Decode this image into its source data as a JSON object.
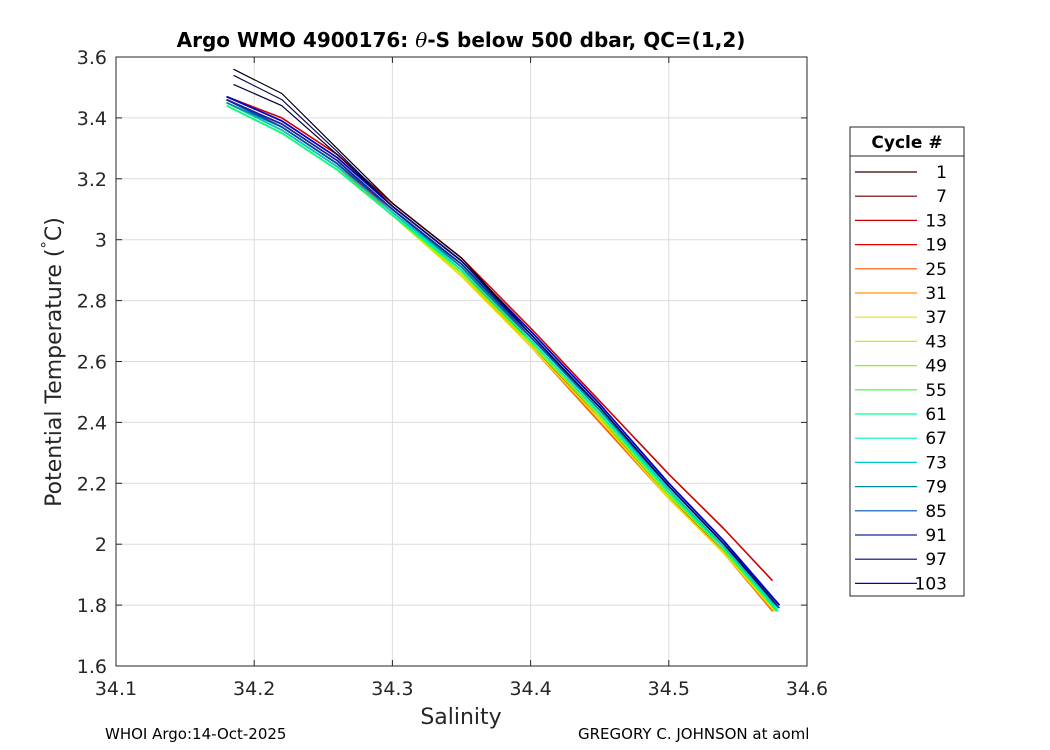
{
  "chart_data": {
    "type": "line",
    "title_prefix": "Argo WMO 4900176: ",
    "title_theta": "θ",
    "title_suffix": "-S below 500 dbar,  QC=(1,2)",
    "xlabel": "Salinity",
    "ylabel_prefix": "Potential Temperature (",
    "ylabel_degree": "°",
    "ylabel_suffix": "C)",
    "xlim": [
      34.1,
      34.6
    ],
    "ylim": [
      1.6,
      3.6
    ],
    "xticks": [
      "34.1",
      "34.2",
      "34.3",
      "34.4",
      "34.5",
      "34.6"
    ],
    "yticks": [
      "1.6",
      "1.8",
      "2",
      "2.2",
      "2.4",
      "2.6",
      "2.8",
      "3",
      "3.2",
      "3.4",
      "3.6"
    ],
    "grid": true,
    "legend_title": "Cycle #",
    "legend_position": "right",
    "series": [
      {
        "name": "1",
        "color": "#330000",
        "points": [
          [
            34.18,
            3.46
          ],
          [
            34.22,
            3.37
          ],
          [
            34.26,
            3.25
          ],
          [
            34.3,
            3.09
          ],
          [
            34.35,
            2.9
          ],
          [
            34.4,
            2.66
          ],
          [
            34.45,
            2.42
          ],
          [
            34.5,
            2.16
          ],
          [
            34.54,
            1.98
          ],
          [
            34.575,
            1.79
          ]
        ]
      },
      {
        "name": "7",
        "color": "#660000",
        "points": [
          [
            34.18,
            3.46
          ],
          [
            34.22,
            3.38
          ],
          [
            34.26,
            3.26
          ],
          [
            34.3,
            3.1
          ],
          [
            34.35,
            2.91
          ],
          [
            34.4,
            2.67
          ],
          [
            34.45,
            2.43
          ],
          [
            34.5,
            2.17
          ],
          [
            34.54,
            1.99
          ],
          [
            34.576,
            1.8
          ]
        ]
      },
      {
        "name": "13",
        "color": "#cc0000",
        "points": [
          [
            34.18,
            3.47
          ],
          [
            34.22,
            3.4
          ],
          [
            34.26,
            3.28
          ],
          [
            34.3,
            3.12
          ],
          [
            34.35,
            2.94
          ],
          [
            34.4,
            2.71
          ],
          [
            34.45,
            2.47
          ],
          [
            34.5,
            2.23
          ],
          [
            34.54,
            2.05
          ],
          [
            34.575,
            1.88
          ]
        ]
      },
      {
        "name": "19",
        "color": "#e60000",
        "points": [
          [
            34.18,
            3.46
          ],
          [
            34.22,
            3.37
          ],
          [
            34.26,
            3.25
          ],
          [
            34.3,
            3.09
          ],
          [
            34.35,
            2.9
          ],
          [
            34.4,
            2.66
          ],
          [
            34.45,
            2.41
          ],
          [
            34.5,
            2.16
          ],
          [
            34.54,
            1.97
          ],
          [
            34.575,
            1.79
          ]
        ]
      },
      {
        "name": "25",
        "color": "#ff5a00",
        "points": [
          [
            34.18,
            3.45
          ],
          [
            34.22,
            3.36
          ],
          [
            34.26,
            3.24
          ],
          [
            34.3,
            3.08
          ],
          [
            34.35,
            2.88
          ],
          [
            34.4,
            2.65
          ],
          [
            34.45,
            2.4
          ],
          [
            34.5,
            2.15
          ],
          [
            34.54,
            1.97
          ],
          [
            34.575,
            1.78
          ]
        ]
      },
      {
        "name": "31",
        "color": "#ff9900",
        "points": [
          [
            34.18,
            3.45
          ],
          [
            34.22,
            3.36
          ],
          [
            34.26,
            3.24
          ],
          [
            34.3,
            3.08
          ],
          [
            34.35,
            2.89
          ],
          [
            34.4,
            2.65
          ],
          [
            34.45,
            2.41
          ],
          [
            34.5,
            2.15
          ],
          [
            34.54,
            1.97
          ],
          [
            34.576,
            1.78
          ]
        ]
      },
      {
        "name": "37",
        "color": "#f0e000",
        "points": [
          [
            34.18,
            3.44
          ],
          [
            34.22,
            3.35
          ],
          [
            34.26,
            3.23
          ],
          [
            34.3,
            3.08
          ],
          [
            34.35,
            2.88
          ],
          [
            34.4,
            2.65
          ],
          [
            34.45,
            2.41
          ],
          [
            34.5,
            2.15
          ],
          [
            34.54,
            1.97
          ],
          [
            34.577,
            1.78
          ]
        ]
      },
      {
        "name": "43",
        "color": "#c8f000",
        "points": [
          [
            34.18,
            3.44
          ],
          [
            34.22,
            3.35
          ],
          [
            34.26,
            3.23
          ],
          [
            34.3,
            3.08
          ],
          [
            34.35,
            2.89
          ],
          [
            34.4,
            2.66
          ],
          [
            34.45,
            2.42
          ],
          [
            34.5,
            2.16
          ],
          [
            34.54,
            1.98
          ],
          [
            34.578,
            1.78
          ]
        ]
      },
      {
        "name": "49",
        "color": "#80ff00",
        "points": [
          [
            34.18,
            3.44
          ],
          [
            34.22,
            3.35
          ],
          [
            34.26,
            3.23
          ],
          [
            34.3,
            3.08
          ],
          [
            34.35,
            2.89
          ],
          [
            34.4,
            2.66
          ],
          [
            34.45,
            2.42
          ],
          [
            34.5,
            2.16
          ],
          [
            34.54,
            1.98
          ],
          [
            34.578,
            1.78
          ]
        ]
      },
      {
        "name": "55",
        "color": "#30ff30",
        "points": [
          [
            34.18,
            3.44
          ],
          [
            34.22,
            3.35
          ],
          [
            34.26,
            3.23
          ],
          [
            34.3,
            3.08
          ],
          [
            34.35,
            2.9
          ],
          [
            34.4,
            2.67
          ],
          [
            34.45,
            2.43
          ],
          [
            34.5,
            2.17
          ],
          [
            34.54,
            1.98
          ],
          [
            34.578,
            1.78
          ]
        ]
      },
      {
        "name": "61",
        "color": "#00ff90",
        "points": [
          [
            34.18,
            3.44
          ],
          [
            34.22,
            3.35
          ],
          [
            34.26,
            3.23
          ],
          [
            34.3,
            3.08
          ],
          [
            34.35,
            2.9
          ],
          [
            34.4,
            2.67
          ],
          [
            34.45,
            2.43
          ],
          [
            34.5,
            2.17
          ],
          [
            34.54,
            1.99
          ],
          [
            34.579,
            1.78
          ]
        ]
      },
      {
        "name": "67",
        "color": "#00f0c0",
        "points": [
          [
            34.18,
            3.45
          ],
          [
            34.22,
            3.36
          ],
          [
            34.26,
            3.24
          ],
          [
            34.3,
            3.09
          ],
          [
            34.35,
            2.9
          ],
          [
            34.4,
            2.67
          ],
          [
            34.45,
            2.43
          ],
          [
            34.5,
            2.18
          ],
          [
            34.54,
            1.99
          ],
          [
            34.579,
            1.78
          ]
        ]
      },
      {
        "name": "73",
        "color": "#00c8c8",
        "points": [
          [
            34.18,
            3.45
          ],
          [
            34.22,
            3.36
          ],
          [
            34.26,
            3.24
          ],
          [
            34.3,
            3.09
          ],
          [
            34.35,
            2.91
          ],
          [
            34.4,
            2.68
          ],
          [
            34.45,
            2.44
          ],
          [
            34.5,
            2.18
          ],
          [
            34.54,
            1.99
          ],
          [
            34.579,
            1.79
          ]
        ]
      },
      {
        "name": "79",
        "color": "#008ca0",
        "points": [
          [
            34.18,
            3.45
          ],
          [
            34.22,
            3.37
          ],
          [
            34.26,
            3.25
          ],
          [
            34.3,
            3.1
          ],
          [
            34.35,
            2.91
          ],
          [
            34.4,
            2.68
          ],
          [
            34.45,
            2.44
          ],
          [
            34.5,
            2.19
          ],
          [
            34.54,
            2.0
          ],
          [
            34.58,
            1.79
          ]
        ]
      },
      {
        "name": "85",
        "color": "#0050b4",
        "points": [
          [
            34.18,
            3.46
          ],
          [
            34.22,
            3.37
          ],
          [
            34.26,
            3.25
          ],
          [
            34.3,
            3.1
          ],
          [
            34.35,
            2.92
          ],
          [
            34.4,
            2.68
          ],
          [
            34.45,
            2.45
          ],
          [
            34.5,
            2.19
          ],
          [
            34.54,
            2.0
          ],
          [
            34.58,
            1.79
          ]
        ]
      },
      {
        "name": "91",
        "color": "#1428a0",
        "points": [
          [
            34.18,
            3.46
          ],
          [
            34.22,
            3.38
          ],
          [
            34.26,
            3.26
          ],
          [
            34.3,
            3.1
          ],
          [
            34.35,
            2.92
          ],
          [
            34.4,
            2.69
          ],
          [
            34.45,
            2.45
          ],
          [
            34.5,
            2.19
          ],
          [
            34.54,
            2.0
          ],
          [
            34.58,
            1.8
          ]
        ]
      },
      {
        "name": "97",
        "color": "#000080",
        "points": [
          [
            34.18,
            3.47
          ],
          [
            34.22,
            3.39
          ],
          [
            34.26,
            3.27
          ],
          [
            34.3,
            3.11
          ],
          [
            34.35,
            2.93
          ],
          [
            34.4,
            2.7
          ],
          [
            34.45,
            2.46
          ],
          [
            34.5,
            2.2
          ],
          [
            34.54,
            2.01
          ],
          [
            34.58,
            1.8
          ]
        ]
      },
      {
        "name": "103",
        "color": "#0000d2",
        "points": [
          [
            34.18,
            3.47
          ],
          [
            34.22,
            3.39
          ],
          [
            34.26,
            3.27
          ],
          [
            34.3,
            3.11
          ],
          [
            34.35,
            2.93
          ],
          [
            34.4,
            2.7
          ],
          [
            34.45,
            2.46
          ],
          [
            34.5,
            2.2
          ],
          [
            34.54,
            2.01
          ],
          [
            34.58,
            1.8
          ]
        ]
      }
    ],
    "extra_traces": [
      {
        "color": "#000014",
        "points": [
          [
            34.185,
            3.56
          ],
          [
            34.22,
            3.48
          ],
          [
            34.26,
            3.3
          ],
          [
            34.3,
            3.12
          ],
          [
            34.35,
            2.94
          ],
          [
            34.4,
            2.69
          ],
          [
            34.45,
            2.45
          ],
          [
            34.5,
            2.19
          ],
          [
            34.54,
            2.0
          ],
          [
            34.578,
            1.8
          ]
        ]
      },
      {
        "color": "#000030",
        "points": [
          [
            34.185,
            3.51
          ],
          [
            34.22,
            3.44
          ],
          [
            34.26,
            3.28
          ],
          [
            34.3,
            3.11
          ],
          [
            34.35,
            2.93
          ],
          [
            34.4,
            2.69
          ],
          [
            34.45,
            2.45
          ],
          [
            34.5,
            2.19
          ],
          [
            34.54,
            2.0
          ],
          [
            34.578,
            1.8
          ]
        ]
      },
      {
        "color": "#0a0a5a",
        "points": [
          [
            34.185,
            3.54
          ],
          [
            34.22,
            3.46
          ],
          [
            34.26,
            3.29
          ],
          [
            34.3,
            3.11
          ],
          [
            34.35,
            2.93
          ],
          [
            34.4,
            2.69
          ],
          [
            34.45,
            2.45
          ],
          [
            34.5,
            2.19
          ],
          [
            34.54,
            2.0
          ],
          [
            34.578,
            1.8
          ]
        ]
      }
    ]
  },
  "footer": {
    "left": "WHOI Argo:14-Oct-2025",
    "right": "GREGORY C. JOHNSON at aoml"
  }
}
